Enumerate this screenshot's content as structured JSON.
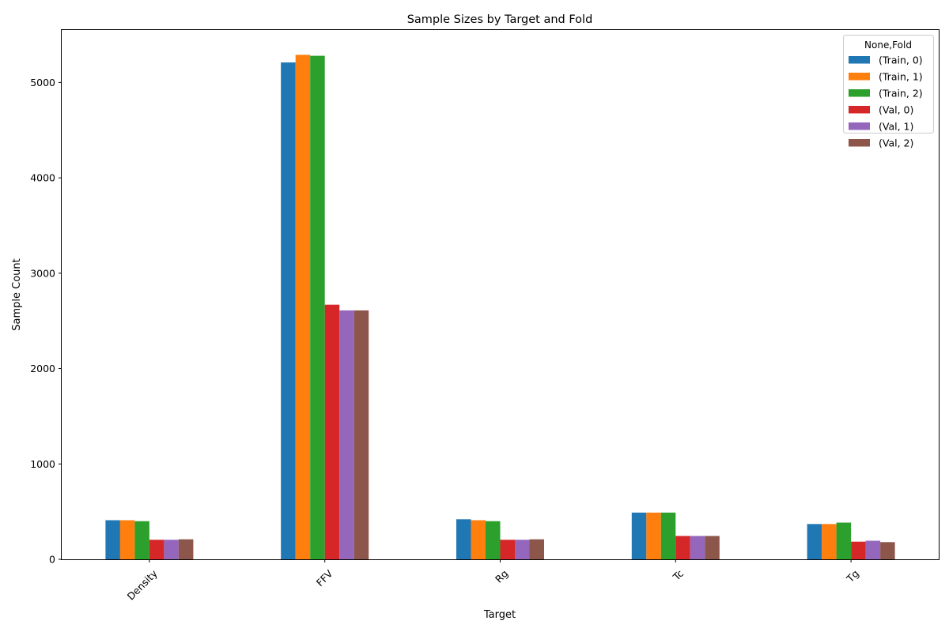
{
  "chart_data": {
    "type": "bar",
    "title": "Sample Sizes by Target and Fold",
    "xlabel": "Target",
    "ylabel": "Sample Count",
    "categories": [
      "Density",
      "FFV",
      "Rg",
      "Tc",
      "Tg"
    ],
    "ylim": [
      0,
      5550
    ],
    "yticks": [
      0,
      1000,
      2000,
      3000,
      4000,
      5000
    ],
    "grid": false,
    "legend_title": "None,Fold",
    "legend_position": "top-right",
    "series": [
      {
        "name": "(Train, 0)",
        "color": "#1f77b4",
        "values": [
          410,
          5210,
          420,
          490,
          370
        ]
      },
      {
        "name": "(Train, 1)",
        "color": "#ff7f0e",
        "values": [
          410,
          5290,
          410,
          490,
          370
        ]
      },
      {
        "name": "(Train, 2)",
        "color": "#2ca02c",
        "values": [
          400,
          5280,
          400,
          490,
          385
        ]
      },
      {
        "name": "(Val, 0)",
        "color": "#d62728",
        "values": [
          205,
          2670,
          205,
          245,
          185
        ]
      },
      {
        "name": "(Val, 1)",
        "color": "#9467bd",
        "values": [
          205,
          2610,
          205,
          245,
          195
        ]
      },
      {
        "name": "(Val, 2)",
        "color": "#8c564b",
        "values": [
          210,
          2610,
          210,
          245,
          180
        ]
      }
    ]
  }
}
